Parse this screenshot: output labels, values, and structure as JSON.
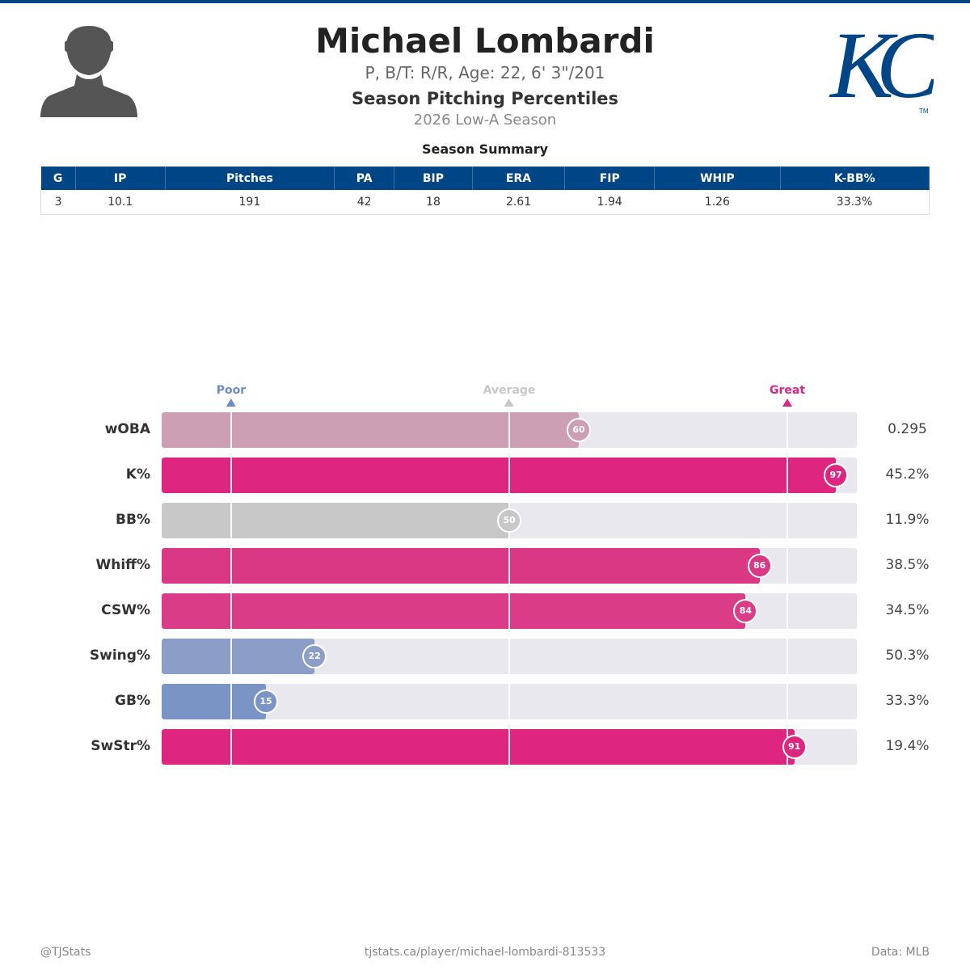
{
  "header": {
    "name": "Michael Lombardi",
    "bio": "P, B/T: R/R, Age: 22, 6' 3\"/201",
    "title": "Season Pitching Percentiles",
    "season": "2026 Low-A Season",
    "logo_text": "KC",
    "brand_color": "#004687"
  },
  "summary": {
    "title": "Season Summary",
    "columns": [
      "G",
      "IP",
      "Pitches",
      "PA",
      "BIP",
      "ERA",
      "FIP",
      "WHIP",
      "K-BB%"
    ],
    "values": [
      "3",
      "10.1",
      "191",
      "42",
      "18",
      "2.61",
      "1.94",
      "1.26",
      "33.3%"
    ]
  },
  "chart_data": {
    "type": "bar",
    "orientation": "horizontal",
    "xlim": [
      0,
      100
    ],
    "markers": [
      {
        "label": "Poor",
        "value": 10,
        "color": "#6d8ccb"
      },
      {
        "label": "Average",
        "value": 50,
        "color": "#c8c8c8"
      },
      {
        "label": "Great",
        "value": 90,
        "color": "#de2680"
      }
    ],
    "categories": [
      "wOBA",
      "K%",
      "BB%",
      "Whiff%",
      "CSW%",
      "Swing%",
      "GB%",
      "SwStr%"
    ],
    "percentiles": [
      60,
      97,
      50,
      86,
      84,
      22,
      15,
      91
    ],
    "stat_values": [
      "0.295",
      "45.2%",
      "11.9%",
      "38.5%",
      "34.5%",
      "50.3%",
      "33.3%",
      "19.4%"
    ],
    "colors": [
      "#cc9fb4",
      "#de2680",
      "#c8c8c8",
      "#da3885",
      "#db3c87",
      "#8a9ec8",
      "#7a94c6",
      "#de2680"
    ]
  },
  "footer": {
    "left": "@TJStats",
    "center": "tjstats.ca/player/michael-lombardi-813533",
    "right": "Data: MLB"
  }
}
